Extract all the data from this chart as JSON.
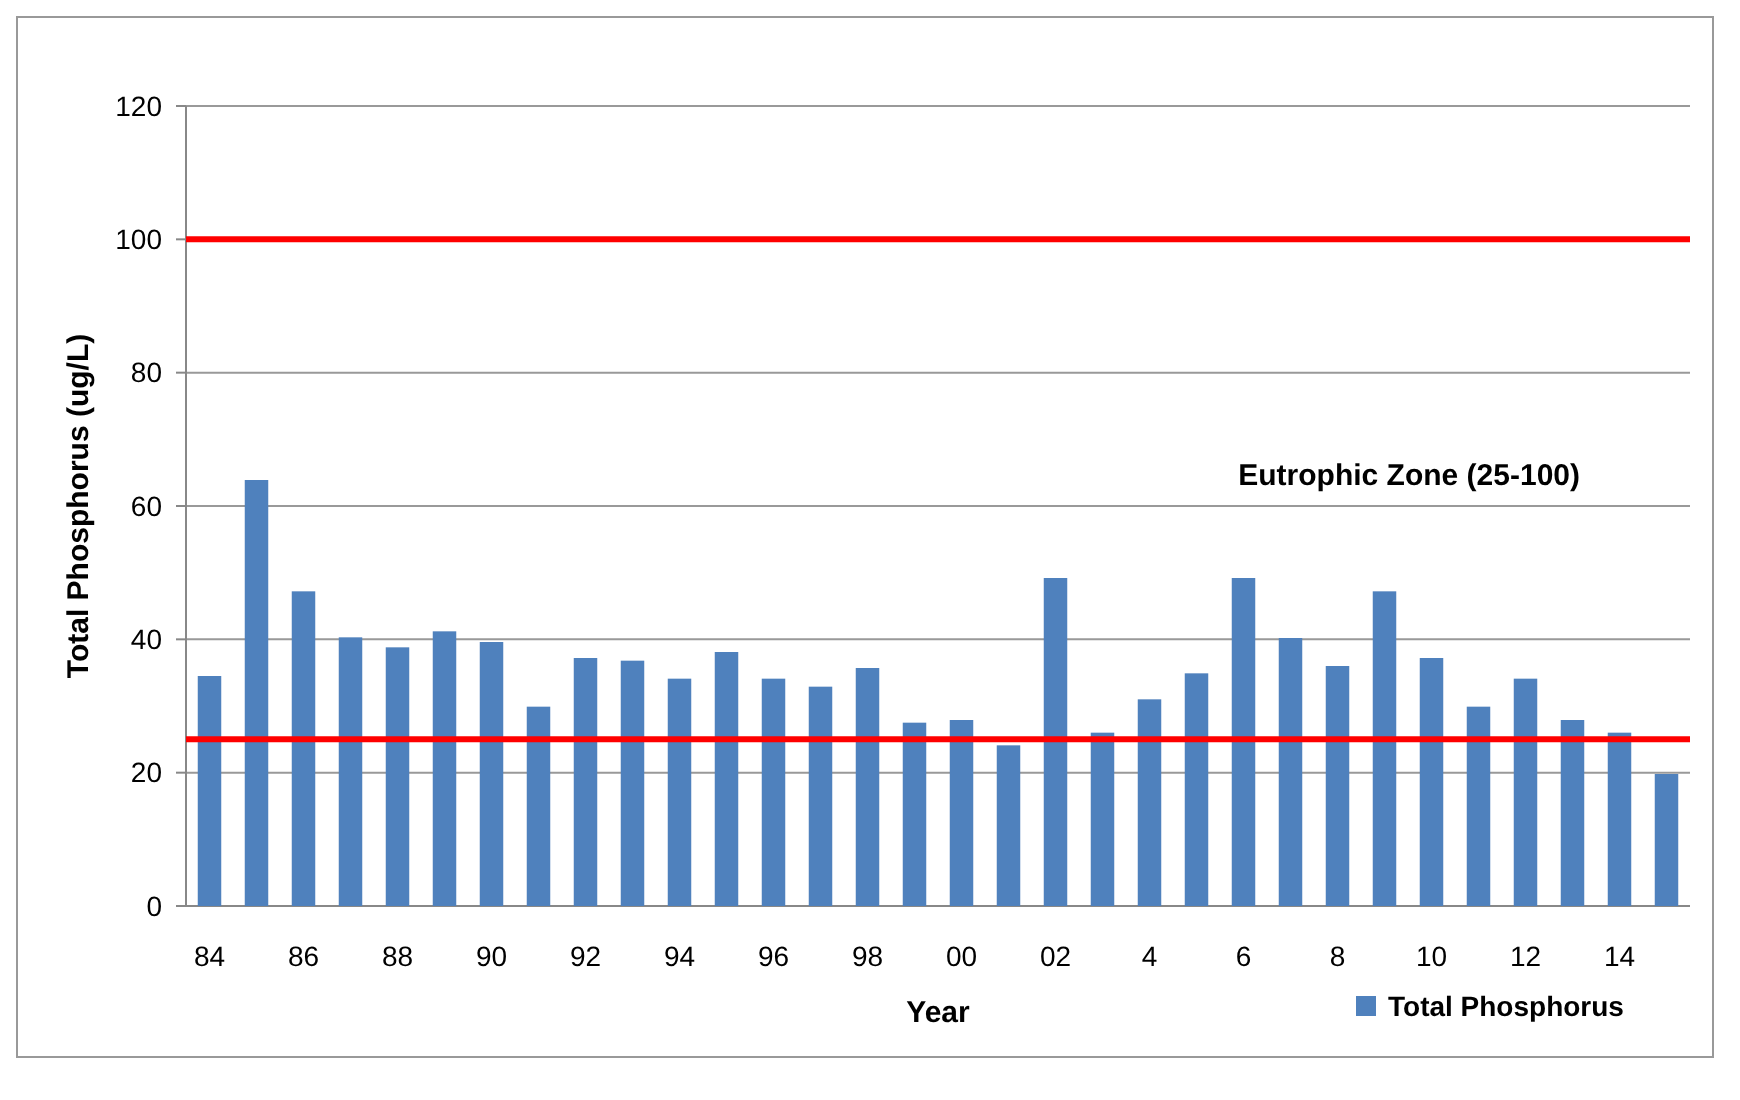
{
  "chart_data": {
    "type": "bar",
    "xlabel": "Year",
    "ylabel": "Total Phosphorus (ug/L)",
    "categories": [
      "84",
      null,
      "86",
      null,
      "88",
      null,
      "90",
      null,
      "92",
      null,
      "94",
      null,
      "96",
      null,
      "98",
      null,
      "00",
      null,
      "02",
      null,
      "4",
      null,
      "6",
      null,
      "8",
      null,
      "10",
      null,
      "12",
      null,
      "14",
      null
    ],
    "series": [
      {
        "name": "Total Phosphorus",
        "color": "#4f81bd",
        "values": [
          34.5,
          63.9,
          47.2,
          40.3,
          38.8,
          41.2,
          39.6,
          29.9,
          37.2,
          36.8,
          34.1,
          38.1,
          34.1,
          32.9,
          35.7,
          27.5,
          27.9,
          24.1,
          49.2,
          26,
          31,
          34.9,
          49.2,
          40.2,
          36,
          47.2,
          37.2,
          29.9,
          34.1,
          27.9,
          26,
          19.8
        ]
      }
    ],
    "ylim": [
      0,
      120
    ],
    "yticks": [
      0,
      20,
      40,
      60,
      80,
      100,
      120
    ],
    "grid": "y",
    "legend": "bottom right",
    "ref_lines": [
      {
        "axis": "y",
        "value": 100,
        "color": "#ff0000"
      },
      {
        "axis": "y",
        "value": 25,
        "color": "#ff0000"
      }
    ],
    "annotations": [
      "Eutrophic Zone (25-100)"
    ]
  }
}
